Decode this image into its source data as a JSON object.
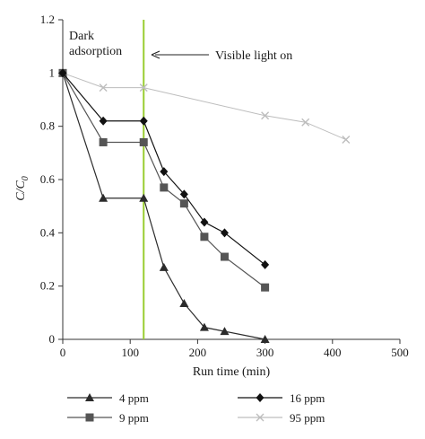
{
  "chart_data": {
    "type": "line",
    "xlabel": "Run time (min)",
    "ylabel": "C/C",
    "ylabel_sub": "0",
    "xlim": [
      0,
      500
    ],
    "ylim": [
      0,
      1.2
    ],
    "xticks": [
      0,
      100,
      200,
      300,
      400,
      500
    ],
    "yticks": [
      0,
      0.2,
      0.4,
      0.6,
      0.8,
      1,
      1.2
    ],
    "ytick_labels": [
      "0",
      "0.2",
      "0.4",
      "0.6",
      "0.8",
      "1",
      "1.2"
    ],
    "grid": false,
    "legend_position": "bottom",
    "vline_x": 120,
    "vline_color": "#9acd32",
    "annotations": {
      "dark_line1": "Dark",
      "dark_line2": "adsorption",
      "visible": "Visible light on"
    },
    "series": [
      {
        "name": "4 ppm",
        "marker": "triangle",
        "color": "#2b2b2b",
        "x": [
          0,
          60,
          120,
          150,
          180,
          210,
          240,
          300
        ],
        "y": [
          1.0,
          0.53,
          0.53,
          0.27,
          0.135,
          0.045,
          0.03,
          0.0
        ]
      },
      {
        "name": "9 ppm",
        "marker": "square",
        "color": "#555555",
        "x": [
          0,
          60,
          120,
          150,
          180,
          210,
          240,
          300
        ],
        "y": [
          1.0,
          0.74,
          0.74,
          0.57,
          0.51,
          0.385,
          0.31,
          0.195
        ]
      },
      {
        "name": "16 ppm",
        "marker": "diamond",
        "color": "#111111",
        "x": [
          0,
          60,
          120,
          150,
          180,
          210,
          240,
          300
        ],
        "y": [
          1.0,
          0.82,
          0.82,
          0.63,
          0.545,
          0.44,
          0.4,
          0.28
        ]
      },
      {
        "name": "95 ppm",
        "marker": "x",
        "color": "#bdbdbd",
        "x": [
          0,
          60,
          120,
          300,
          360,
          420
        ],
        "y": [
          1.0,
          0.945,
          0.945,
          0.84,
          0.815,
          0.75
        ]
      }
    ]
  }
}
